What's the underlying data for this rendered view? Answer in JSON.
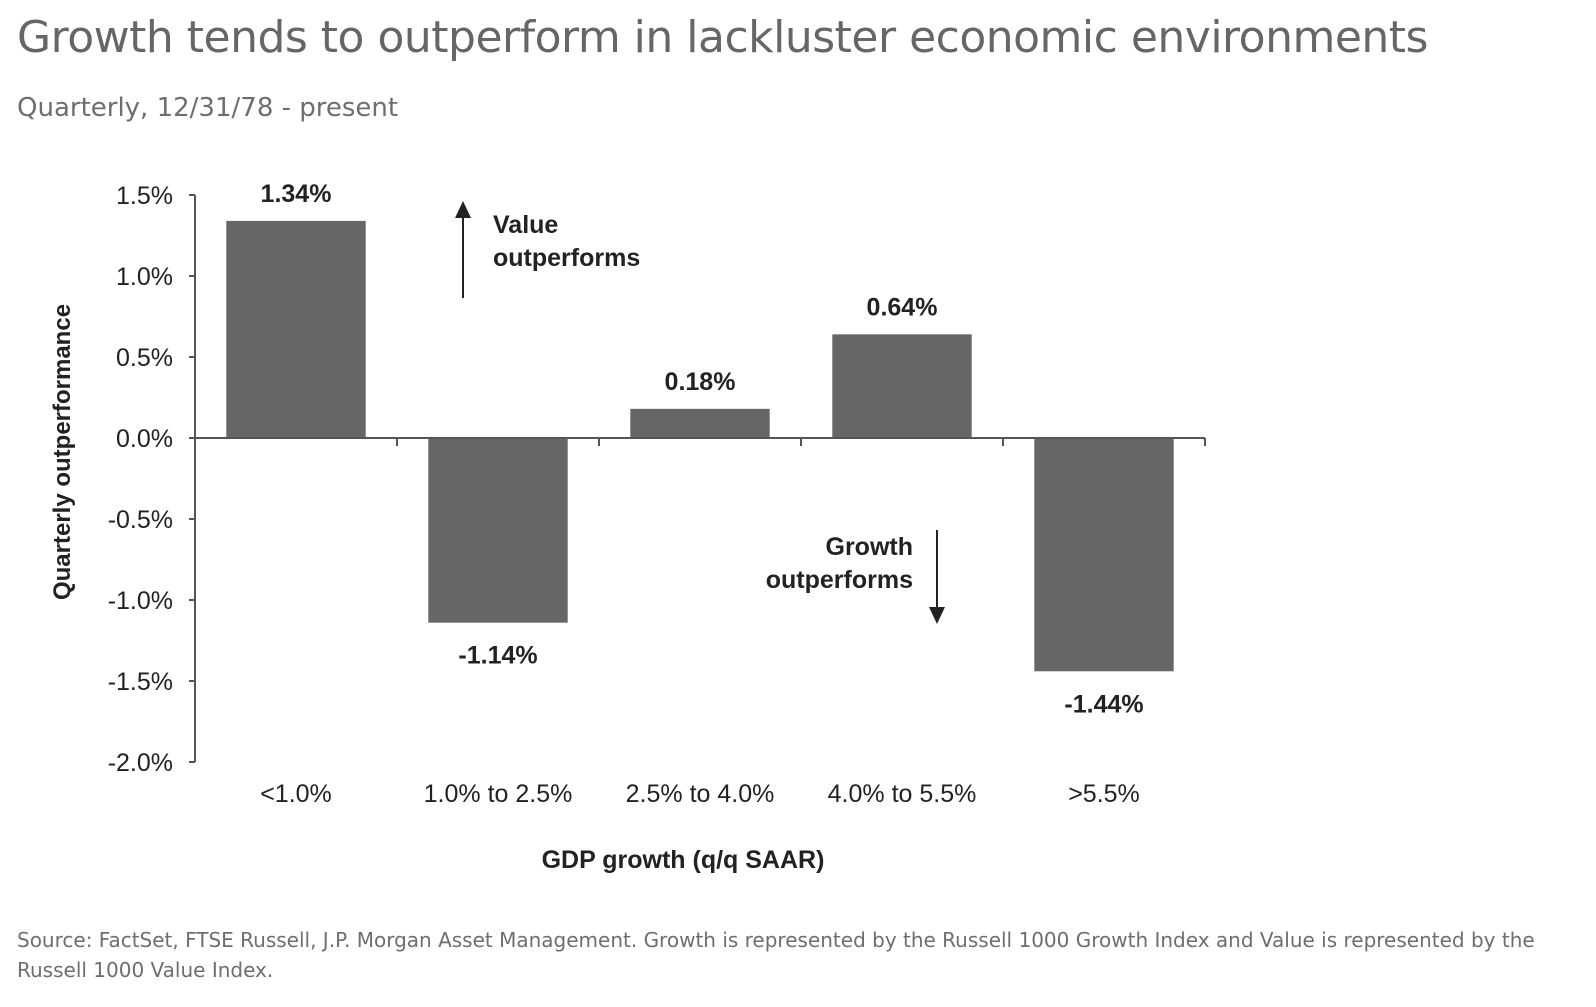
{
  "header": {
    "title": "Growth tends to outperform in lackluster economic environments",
    "subtitle": "Quarterly, 12/31/78 - present"
  },
  "chart_data": {
    "type": "bar",
    "categories": [
      "<1.0%",
      "1.0% to 2.5%",
      "2.5% to 4.0%",
      "4.0% to 5.5%",
      ">5.5%"
    ],
    "values": [
      1.34,
      -1.14,
      0.18,
      0.64,
      -1.44
    ],
    "data_labels": [
      "1.34%",
      "-1.14%",
      "0.18%",
      "0.64%",
      "-1.44%"
    ],
    "xlabel": "GDP growth (q/q SAAR)",
    "ylabel": "Quarterly outperformance",
    "ylim": [
      -2.0,
      1.5
    ],
    "yticks": [
      1.5,
      1.0,
      0.5,
      0.0,
      -0.5,
      -1.0,
      -1.5,
      -2.0
    ],
    "ytick_labels": [
      "1.5%",
      "1.0%",
      "0.5%",
      "0.0%",
      "-0.5%",
      "-1.0%",
      "-1.5%",
      "-2.0%"
    ],
    "annotations": {
      "value": [
        "Value",
        "outperforms"
      ],
      "growth": [
        "Growth",
        "outperforms"
      ]
    },
    "colors": {
      "bar": "#666666",
      "axis": "#555555",
      "text": "#222222"
    },
    "grid": false
  },
  "footer": {
    "source": "Source: FactSet, FTSE Russell, J.P. Morgan Asset Management. Growth is represented by the Russell 1000 Growth Index and Value is represented by the Russell 1000 Value Index."
  }
}
